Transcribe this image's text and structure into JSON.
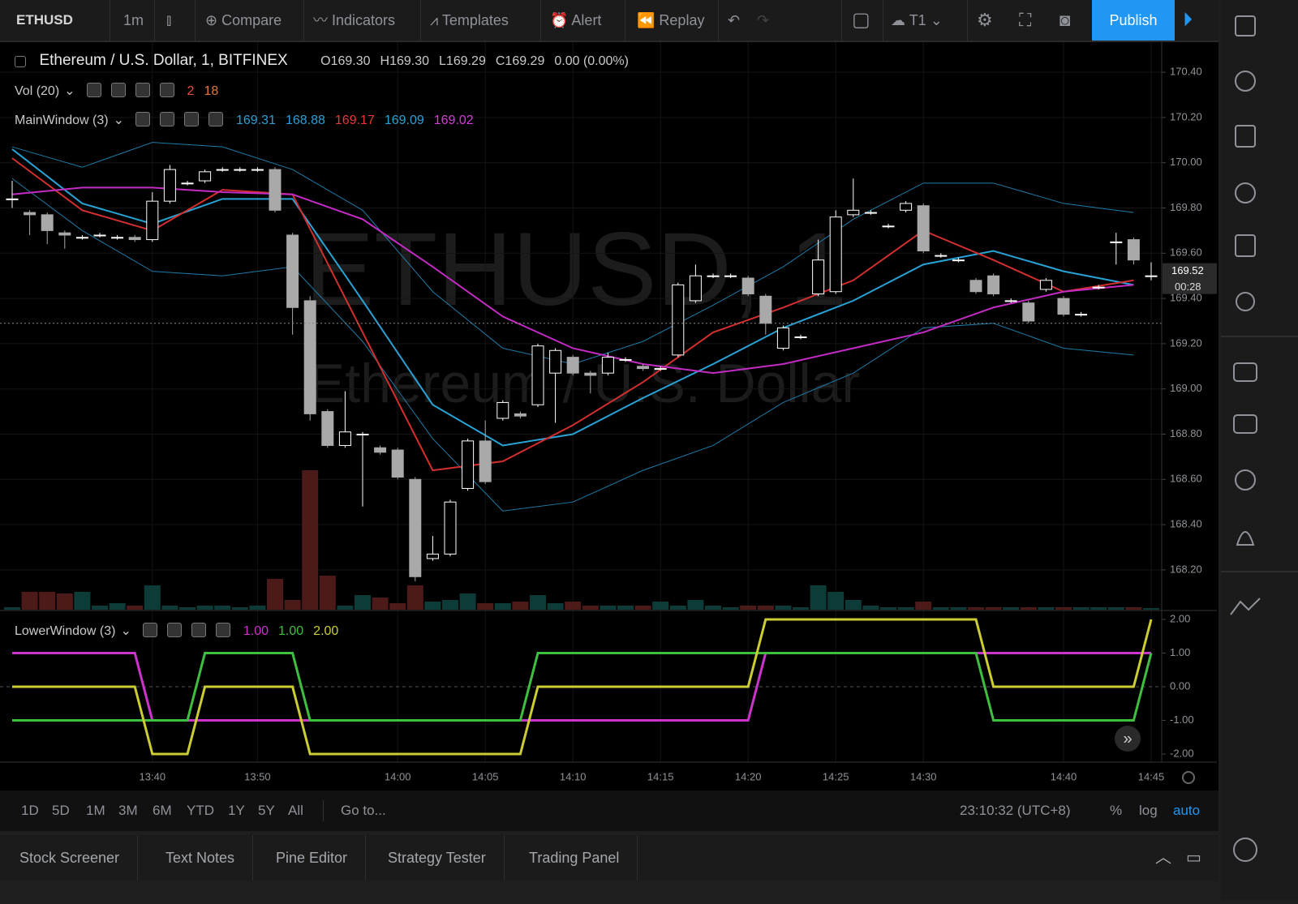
{
  "toolbar": {
    "symbol": "ETHUSD",
    "interval": "1m",
    "items": [
      "Compare",
      "Indicators",
      "Templates",
      "Alert",
      "Replay"
    ],
    "cloud": "T1",
    "publish": "Publish"
  },
  "legend": {
    "title": "Ethereum / U.S. Dollar, 1, BITFINEX",
    "quote": [
      "O169.30",
      "H169.30",
      "L169.29",
      "C169.29",
      "0.00 (0.00%)"
    ],
    "studies": [
      {
        "name": "Vol (20)",
        "values": [
          {
            "text": "2",
            "color": "#e0523f"
          },
          {
            "text": "18",
            "color": "#e0783f"
          }
        ]
      },
      {
        "name": "MainWindow (3)",
        "values": [
          {
            "text": "169.31",
            "color": "#2a9fd6"
          },
          {
            "text": "168.88",
            "color": "#2a9fd6"
          },
          {
            "text": "169.17",
            "color": "#e53935"
          },
          {
            "text": "169.09",
            "color": "#2a9fd6"
          },
          {
            "text": "169.02",
            "color": "#d63bd6"
          }
        ]
      },
      {
        "name": "LowerWindow (3)",
        "values": [
          {
            "text": "1.00",
            "color": "#cc33cc"
          },
          {
            "text": "1.00",
            "color": "#3fbf3f"
          },
          {
            "text": "2.00",
            "color": "#cccc33"
          }
        ]
      }
    ]
  },
  "watermark": [
    "ETHUSD, 1",
    "Ethereum / U.S. Dollar"
  ],
  "chart_data": [
    {
      "type": "candlestick",
      "categories": [
        null,
        null,
        null,
        null,
        null,
        null,
        null,
        null,
        "13:40",
        null,
        null,
        null,
        null,
        null,
        "13:50",
        null,
        null,
        null,
        null,
        null,
        null,
        null,
        "14:00",
        null,
        null,
        null,
        null,
        "14:05",
        null,
        null,
        null,
        null,
        "14:10",
        null,
        null,
        null,
        null,
        "14:15",
        null,
        null,
        null,
        null,
        "14:20",
        null,
        null,
        null,
        null,
        "14:25",
        null,
        null,
        null,
        null,
        "14:30",
        null,
        null,
        null,
        null,
        null,
        null,
        null,
        "14:40",
        null,
        null,
        null,
        null,
        "14:45"
      ],
      "open": [
        169.84,
        169.78,
        169.77,
        169.69,
        169.67,
        169.68,
        169.67,
        169.67,
        169.66,
        169.83,
        169.91,
        169.92,
        169.97,
        169.97,
        169.97,
        169.97,
        169.68,
        169.39,
        168.9,
        168.75,
        168.8,
        168.74,
        168.73,
        168.6,
        168.25,
        168.27,
        168.56,
        168.77,
        168.87,
        168.89,
        168.93,
        169.07,
        169.14,
        169.07,
        169.07,
        169.13,
        169.1,
        169.09,
        169.15,
        169.39,
        169.5,
        169.5,
        169.49,
        169.41,
        169.18,
        169.23,
        169.42,
        169.43,
        169.77,
        169.78,
        169.72,
        169.79,
        169.81,
        169.59,
        169.57,
        169.48,
        169.5,
        169.39,
        169.38,
        169.44,
        169.4,
        169.33,
        169.45,
        169.65,
        169.66,
        169.5
      ],
      "high": [
        169.92,
        169.79,
        169.78,
        169.7,
        169.68,
        169.69,
        169.68,
        169.68,
        169.87,
        169.99,
        169.92,
        169.97,
        169.98,
        169.98,
        169.98,
        169.98,
        169.69,
        169.41,
        168.91,
        168.99,
        168.81,
        168.75,
        168.74,
        168.61,
        168.35,
        168.51,
        168.78,
        168.86,
        168.95,
        168.9,
        169.2,
        169.18,
        169.15,
        169.08,
        169.16,
        169.14,
        169.11,
        169.1,
        169.47,
        169.55,
        169.51,
        169.51,
        169.5,
        169.42,
        169.28,
        169.24,
        169.66,
        169.79,
        169.93,
        169.79,
        169.73,
        169.83,
        169.82,
        169.6,
        169.58,
        169.49,
        169.51,
        169.4,
        169.39,
        169.49,
        169.41,
        169.34,
        169.46,
        169.69,
        169.67,
        169.56
      ],
      "low": [
        169.8,
        169.68,
        169.64,
        169.62,
        169.66,
        169.67,
        169.66,
        169.65,
        169.65,
        169.82,
        169.9,
        169.91,
        169.96,
        169.96,
        169.96,
        169.78,
        169.24,
        168.86,
        168.74,
        168.74,
        168.48,
        168.71,
        168.6,
        168.15,
        168.24,
        168.26,
        168.55,
        168.58,
        168.86,
        168.87,
        168.92,
        168.85,
        169.06,
        168.98,
        169.06,
        169.12,
        169.08,
        169.08,
        169.14,
        169.38,
        169.49,
        169.49,
        169.41,
        169.24,
        169.17,
        169.22,
        169.41,
        169.42,
        169.76,
        169.77,
        169.71,
        169.78,
        169.6,
        169.58,
        169.56,
        169.42,
        169.41,
        169.38,
        169.29,
        169.43,
        169.32,
        169.32,
        169.44,
        169.55,
        169.55,
        169.48
      ],
      "close": [
        169.84,
        169.77,
        169.7,
        169.68,
        169.67,
        169.68,
        169.67,
        169.66,
        169.83,
        169.97,
        169.91,
        169.96,
        169.97,
        169.97,
        169.97,
        169.79,
        169.36,
        168.89,
        168.75,
        168.81,
        168.8,
        168.72,
        168.61,
        168.17,
        168.27,
        168.5,
        168.77,
        168.59,
        168.94,
        168.88,
        169.19,
        169.17,
        169.07,
        169.06,
        169.14,
        169.13,
        169.09,
        169.09,
        169.46,
        169.5,
        169.5,
        169.5,
        169.42,
        169.29,
        169.27,
        169.23,
        169.57,
        169.76,
        169.79,
        169.78,
        169.72,
        169.82,
        169.61,
        169.59,
        169.57,
        169.43,
        169.42,
        169.39,
        169.3,
        169.48,
        169.33,
        169.33,
        169.45,
        169.65,
        169.57,
        169.5
      ],
      "up_color": "#ffffff",
      "down_color": "#a9a9a9",
      "ylim": [
        168.024,
        170.533
      ],
      "yticks": [
        {
          "value": 170.4,
          "label": "170.40"
        },
        {
          "value": 170.2,
          "label": "170.20"
        },
        {
          "value": 170,
          "label": "170.00"
        },
        {
          "value": 169.8,
          "label": "169.80"
        },
        {
          "value": 169.6,
          "label": "169.60"
        },
        {
          "value": 169.4,
          "label": "169.40"
        },
        {
          "value": 169.2,
          "label": "169.20"
        },
        {
          "value": 169,
          "label": "169.00"
        },
        {
          "value": 168.8,
          "label": "168.80"
        },
        {
          "value": 168.6,
          "label": "168.60"
        },
        {
          "value": 168.4,
          "label": "168.40"
        },
        {
          "value": 168.2,
          "label": "168.20"
        }
      ],
      "grid": true,
      "last_price": 169.52,
      "countdown": "00:28",
      "price_line": 169.29,
      "overlays": [
        {
          "color": "#1f7ba8",
          "width": 1,
          "x": [
            0,
            4,
            8,
            12,
            16,
            20,
            24,
            28,
            32,
            36,
            40,
            44,
            48,
            52,
            56,
            60,
            64
          ],
          "values": [
            170.07,
            169.98,
            170.09,
            170.07,
            169.97,
            169.79,
            169.43,
            169.18,
            169.11,
            169.21,
            169.37,
            169.54,
            169.75,
            169.91,
            169.91,
            169.82,
            169.78
          ]
        },
        {
          "color": "#1f7ba8",
          "width": 1,
          "x": [
            0,
            4,
            8,
            12,
            16,
            20,
            24,
            28,
            32,
            36,
            40,
            44,
            48,
            52,
            56,
            60,
            64
          ],
          "values": [
            169.93,
            169.7,
            169.52,
            169.5,
            169.54,
            169.21,
            168.78,
            168.46,
            168.5,
            168.64,
            168.75,
            168.94,
            169.07,
            169.27,
            169.29,
            169.18,
            169.15
          ]
        },
        {
          "color": "#29a3d6",
          "width": 2,
          "x": [
            0,
            4,
            8,
            12,
            16,
            20,
            24,
            28,
            32,
            36,
            40,
            44,
            48,
            52,
            56,
            60,
            64
          ],
          "values": [
            170.06,
            169.82,
            169.73,
            169.84,
            169.84,
            169.39,
            168.93,
            168.75,
            168.8,
            168.96,
            169.11,
            169.27,
            169.39,
            169.55,
            169.61,
            169.52,
            169.46
          ]
        },
        {
          "color": "#d32f2f",
          "width": 2,
          "x": [
            0,
            4,
            8,
            12,
            16,
            20,
            24,
            28,
            32,
            36,
            40,
            44,
            48,
            52,
            56,
            60,
            64
          ],
          "values": [
            170.02,
            169.79,
            169.7,
            169.88,
            169.86,
            169.25,
            168.64,
            168.68,
            168.84,
            169.03,
            169.25,
            169.36,
            169.48,
            169.7,
            169.57,
            169.43,
            169.48
          ]
        },
        {
          "color": "#c42bc4",
          "width": 2,
          "x": [
            0,
            4,
            8,
            12,
            16,
            20,
            24,
            28,
            32,
            36,
            40,
            44,
            48,
            52,
            56,
            60,
            64
          ],
          "values": [
            169.86,
            169.89,
            169.89,
            169.87,
            169.86,
            169.75,
            169.54,
            169.32,
            169.18,
            169.11,
            169.07,
            169.11,
            169.18,
            169.25,
            169.36,
            169.43,
            169.46
          ]
        }
      ],
      "volume": {
        "values": [
          3,
          22,
          22,
          20,
          22,
          5,
          8,
          5,
          30,
          5,
          3,
          5,
          5,
          3,
          5,
          38,
          12,
          172,
          42,
          5,
          18,
          15,
          8,
          30,
          10,
          12,
          20,
          8,
          8,
          10,
          18,
          8,
          10,
          5,
          5,
          5,
          5,
          10,
          5,
          12,
          5,
          3,
          5,
          5,
          5,
          3,
          30,
          22,
          12,
          5,
          3,
          3,
          10,
          3,
          3,
          3,
          3,
          3,
          3,
          3,
          3,
          3,
          3,
          3,
          3,
          2
        ],
        "ylim": [
          0,
          180
        ],
        "up_color": "#0c3b38",
        "down_color": "#4d1a1a"
      }
    },
    {
      "type": "line",
      "series": [
        {
          "color": "#cc33cc",
          "values": [
            1,
            1,
            1,
            1,
            1,
            1,
            1,
            1,
            -1,
            -1,
            -1,
            -1,
            -1,
            -1,
            -1,
            -1,
            -1,
            -1,
            -1,
            -1,
            -1,
            -1,
            -1,
            -1,
            -1,
            -1,
            -1,
            -1,
            -1,
            -1,
            -1,
            -1,
            -1,
            -1,
            -1,
            -1,
            -1,
            -1,
            -1,
            -1,
            -1,
            -1,
            -1,
            1,
            1,
            1,
            1,
            1,
            1,
            1,
            1,
            1,
            1,
            1,
            1,
            1,
            1,
            1,
            1,
            1,
            1,
            1,
            1,
            1,
            1,
            1
          ]
        },
        {
          "color": "#3fbf3f",
          "values": [
            -1,
            -1,
            -1,
            -1,
            -1,
            -1,
            -1,
            -1,
            -1,
            -1,
            -1,
            1,
            1,
            1,
            1,
            1,
            1,
            -1,
            -1,
            -1,
            -1,
            -1,
            -1,
            -1,
            -1,
            -1,
            -1,
            -1,
            -1,
            -1,
            1,
            1,
            1,
            1,
            1,
            1,
            1,
            1,
            1,
            1,
            1,
            1,
            1,
            1,
            1,
            1,
            1,
            1,
            1,
            1,
            1,
            1,
            1,
            1,
            1,
            1,
            -1,
            -1,
            -1,
            -1,
            -1,
            -1,
            -1,
            -1,
            -1,
            1
          ]
        },
        {
          "color": "#cccc33",
          "values": [
            0,
            0,
            0,
            0,
            0,
            0,
            0,
            0,
            -2,
            -2,
            -2,
            0,
            0,
            0,
            0,
            0,
            0,
            -2,
            -2,
            -2,
            -2,
            -2,
            -2,
            -2,
            -2,
            -2,
            -2,
            -2,
            -2,
            -2,
            0,
            0,
            0,
            0,
            0,
            0,
            0,
            0,
            0,
            0,
            0,
            0,
            0,
            2,
            2,
            2,
            2,
            2,
            2,
            2,
            2,
            2,
            2,
            2,
            2,
            2,
            0,
            0,
            0,
            0,
            0,
            0,
            0,
            0,
            0,
            2
          ]
        }
      ],
      "ylim": [
        -2.24,
        2.24
      ],
      "yticks": [
        {
          "value": 2,
          "label": "2.00"
        },
        {
          "value": 1,
          "label": "1.00"
        },
        {
          "value": 0,
          "label": "0.00"
        },
        {
          "value": -1,
          "label": "-1.00"
        },
        {
          "value": -2,
          "label": "-2.00"
        }
      ]
    }
  ],
  "bottom_bar": {
    "ranges": [
      "1D",
      "5D",
      "1M",
      "3M",
      "6M",
      "YTD",
      "1Y",
      "5Y",
      "All"
    ],
    "goto": "Go to...",
    "clock": "23:10:32 (UTC+8)",
    "scale": [
      "%",
      "log",
      "auto"
    ]
  },
  "tabs": [
    "Stock Screener",
    "Text Notes",
    "Pine Editor",
    "Strategy Tester",
    "Trading Panel"
  ]
}
